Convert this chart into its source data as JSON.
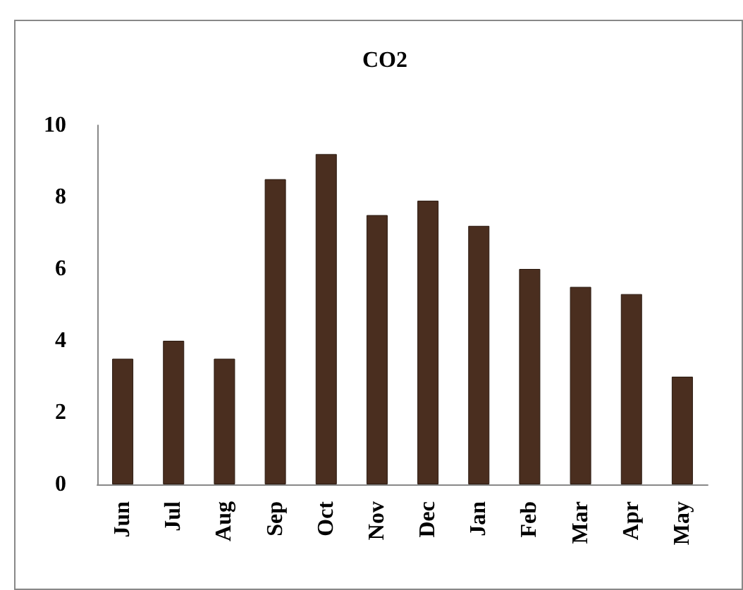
{
  "chart_data": {
    "type": "bar",
    "title": "CO2",
    "categories": [
      "Jun",
      "Jul",
      "Aug",
      "Sep",
      "Oct",
      "Nov",
      "Dec",
      "Jan",
      "Feb",
      "Mar",
      "Apr",
      "May"
    ],
    "values": [
      3.5,
      4.0,
      3.5,
      8.5,
      9.2,
      7.5,
      7.9,
      7.2,
      6.0,
      5.5,
      5.3,
      3.0
    ],
    "color": "#4a2e1f",
    "ylim": [
      0,
      10
    ],
    "yticks": [
      0,
      2,
      4,
      6,
      8,
      10
    ],
    "grid": false
  }
}
